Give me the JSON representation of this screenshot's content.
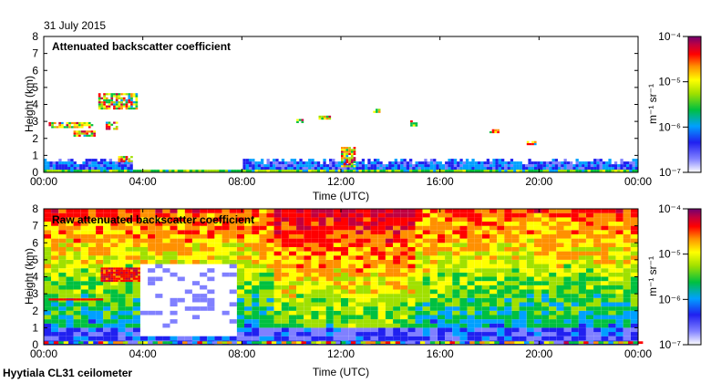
{
  "date": "31 July 2015",
  "footer": "Hyytiala CL31 ceilometer",
  "colors": {
    "background": "#ffffff",
    "axis": "#000000"
  },
  "chart_data": [
    {
      "type": "heatmap",
      "title": "Attenuated backscatter coefficient",
      "xlabel": "Time (UTC)",
      "ylabel": "Height (km)",
      "xlim": [
        0,
        24
      ],
      "ylim": [
        0,
        8
      ],
      "xticks": [
        "00:00",
        "04:00",
        "08:00",
        "12:00",
        "16:00",
        "20:00",
        "00:00"
      ],
      "yticks": [
        "0",
        "1",
        "2",
        "3",
        "4",
        "5",
        "6",
        "7",
        "8"
      ],
      "colorbar": {
        "label": "m⁻¹ sr⁻¹",
        "ticks": [
          "10⁻⁷",
          "10⁻⁶",
          "10⁻⁵",
          "10⁻⁴"
        ],
        "scale": "log",
        "range": [
          1e-07,
          0.0001
        ]
      }
    },
    {
      "type": "heatmap",
      "title": "Raw attenuated backscatter coefficient",
      "xlabel": "Time (UTC)",
      "ylabel": "Height (km)",
      "xlim": [
        0,
        24
      ],
      "ylim": [
        0,
        8
      ],
      "xticks": [
        "00:00",
        "04:00",
        "08:00",
        "12:00",
        "16:00",
        "20:00",
        "00:00"
      ],
      "yticks": [
        "0",
        "1",
        "2",
        "3",
        "4",
        "5",
        "6",
        "7",
        "8"
      ],
      "colorbar": {
        "label": "m⁻¹ sr⁻¹",
        "ticks": [
          "10⁻⁷",
          "10⁻⁶",
          "10⁻⁵",
          "10⁻⁴"
        ],
        "scale": "log",
        "range": [
          1e-07,
          0.0001
        ]
      }
    }
  ]
}
